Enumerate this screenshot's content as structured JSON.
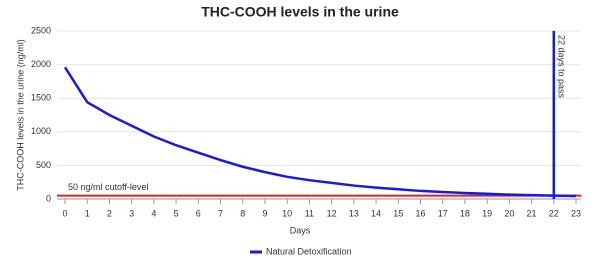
{
  "chart_data": {
    "type": "line",
    "title": "THC-COOH levels in the urine",
    "x_label": "Days",
    "y_label": "THC-COOH levels in the urine (ng/ml)",
    "x": [
      0,
      1,
      2,
      3,
      4,
      5,
      6,
      7,
      8,
      9,
      10,
      11,
      12,
      13,
      14,
      15,
      16,
      17,
      18,
      19,
      20,
      21,
      22,
      23
    ],
    "series": [
      {
        "name": "Natural Detoxification",
        "color": "#1a1adb",
        "values": [
          1960,
          1440,
          1250,
          1090,
          930,
          800,
          690,
          580,
          480,
          400,
          330,
          280,
          240,
          200,
          170,
          145,
          120,
          105,
          90,
          78,
          65,
          57,
          50,
          45
        ]
      }
    ],
    "xlim": [
      0,
      23
    ],
    "xticks": [
      0,
      1,
      2,
      3,
      4,
      5,
      6,
      7,
      8,
      9,
      10,
      11,
      12,
      13,
      14,
      15,
      16,
      17,
      18,
      19,
      20,
      21,
      22,
      23
    ],
    "ylim": [
      0,
      2500
    ],
    "yticks": [
      0,
      500,
      1000,
      1500,
      2000,
      2500
    ],
    "grid": true,
    "hline": {
      "y": 50,
      "label": "50 ng/ml cutoff-level",
      "color": "#e02020"
    },
    "vline": {
      "x": 22,
      "label": "22 days to pass",
      "color": "#1a1adb"
    },
    "legend": "bottom"
  }
}
